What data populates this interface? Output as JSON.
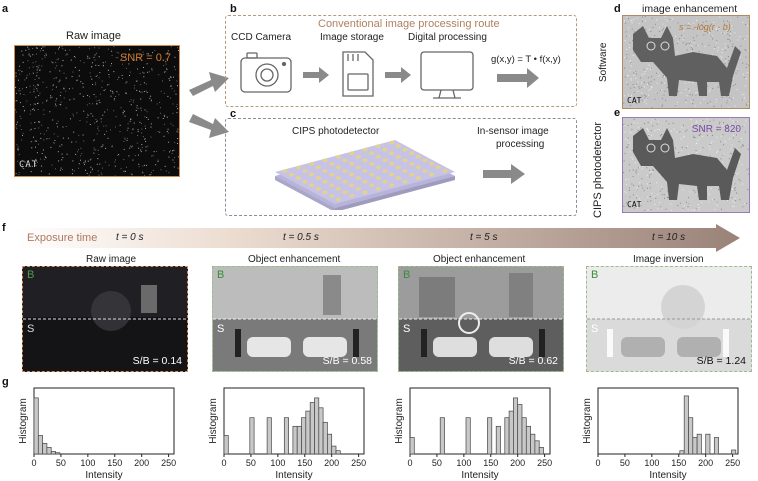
{
  "panels": {
    "a": {
      "label": "a",
      "title": "Raw image",
      "snr": "SNR = 0.7",
      "img_text": "CAT"
    },
    "b": {
      "label": "b",
      "route_title": "Conventional image processing route",
      "step1": "CCD Camera",
      "step2": "Image storage",
      "step3": "Digital processing",
      "formula": "g(x,y) = T • f(x,y)"
    },
    "c": {
      "label": "c",
      "device": "CIPS photodetector",
      "process_line1": "In-sensor image",
      "process_line2": "processing"
    },
    "d": {
      "label": "d",
      "title": "image enhancement",
      "side": "Software",
      "formula": "s = -log(r - b)",
      "img_text": "CAT"
    },
    "e": {
      "label": "e",
      "side": "CIPS photodetector",
      "snr": "SNR = 820",
      "img_text": "CAT"
    },
    "f": {
      "label": "f",
      "exposure_label": "Exposure time",
      "times": [
        "t = 0 s",
        "t = 0.5 s",
        "t = 5 s",
        "t = 10 s"
      ],
      "titles": [
        "Raw image",
        "Object enhancement",
        "Object enhancement",
        "Image inversion"
      ],
      "b_label": "B",
      "s_label": "S",
      "sb": [
        "S/B = 0.14",
        "S/B = 0.58",
        "S/B = 0.62",
        "S/B = 1.24"
      ]
    },
    "g": {
      "label": "g"
    }
  },
  "chart_data": [
    {
      "type": "bar",
      "xlabel": "Intensity",
      "ylabel": "Histogram",
      "xlim": [
        0,
        260
      ],
      "xticks": [
        0,
        50,
        100,
        150,
        200,
        250
      ],
      "x": [
        0,
        8,
        16,
        24,
        32,
        40
      ],
      "values": [
        0.85,
        0.28,
        0.16,
        0.1,
        0.04,
        0.02
      ]
    },
    {
      "type": "bar",
      "xlabel": "Intensity",
      "ylabel": "Histogram",
      "xlim": [
        0,
        260
      ],
      "xticks": [
        0,
        50,
        100,
        150,
        200,
        250
      ],
      "x": [
        0,
        48,
        80,
        112,
        128,
        136,
        144,
        152,
        160,
        168,
        176,
        184,
        192,
        200,
        208
      ],
      "values": [
        0.28,
        0.55,
        0.55,
        0.55,
        0.42,
        0.42,
        0.55,
        0.65,
        0.78,
        0.85,
        0.7,
        0.48,
        0.3,
        0.12,
        0.05
      ]
    },
    {
      "type": "bar",
      "xlabel": "Intensity",
      "ylabel": "Histogram",
      "xlim": [
        0,
        260
      ],
      "xticks": [
        0,
        50,
        100,
        150,
        200,
        250
      ],
      "x": [
        0,
        56,
        104,
        144,
        160,
        176,
        184,
        192,
        200,
        208,
        216,
        224,
        232,
        240
      ],
      "values": [
        0.25,
        0.55,
        0.55,
        0.55,
        0.42,
        0.55,
        0.65,
        0.85,
        0.75,
        0.55,
        0.42,
        0.3,
        0.2,
        0.1
      ]
    },
    {
      "type": "bar",
      "xlabel": "Intensity",
      "ylabel": "Histogram",
      "xlim": [
        0,
        260
      ],
      "xticks": [
        0,
        50,
        100,
        150,
        200,
        250
      ],
      "x": [
        152,
        160,
        168,
        176,
        184,
        200,
        216,
        248
      ],
      "values": [
        0.05,
        0.88,
        0.55,
        0.25,
        0.3,
        0.3,
        0.25,
        0.06
      ]
    }
  ]
}
